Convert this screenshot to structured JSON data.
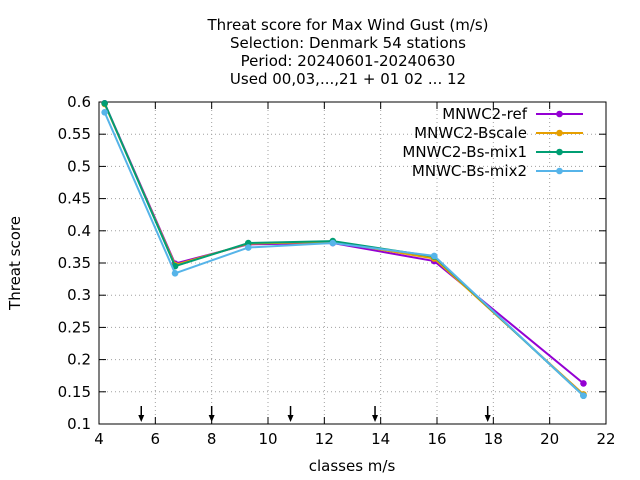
{
  "chart_data": {
    "type": "line",
    "title_lines": [
      "Threat score  for Max Wind Gust (m/s)",
      "Selection: Denmark     54 stations",
      "Period: 20240601-20240630",
      "Used 00,03,...,21 + 01 02 ... 12"
    ],
    "xlabel": "classes m/s",
    "ylabel": "Threat score",
    "xlim": [
      4,
      22
    ],
    "ylim": [
      0.1,
      0.6
    ],
    "xticks": [
      4,
      6,
      8,
      10,
      12,
      14,
      16,
      18,
      20,
      22
    ],
    "yticks": [
      0.1,
      0.15,
      0.2,
      0.25,
      0.3,
      0.35,
      0.4,
      0.45,
      0.5,
      0.55,
      0.6
    ],
    "ytick_labels": [
      "0.1",
      "0.15",
      "0.2",
      "0.25",
      "0.3",
      "0.35",
      "0.4",
      "0.45",
      "0.5",
      "0.55",
      "0.6"
    ],
    "grid": true,
    "legend_position": "top-right",
    "threshold_arrows_x": [
      5.5,
      8.0,
      10.8,
      13.8,
      17.8
    ],
    "x": [
      4.2,
      6.7,
      9.3,
      12.3,
      15.9,
      21.2
    ],
    "series": [
      {
        "name": "MNWC2-ref",
        "color": "#9400d3",
        "values": [
          0.598,
          0.349,
          0.379,
          0.381,
          0.353,
          0.163
        ]
      },
      {
        "name": "MNWC2-Bscale",
        "color": "#e69f00",
        "values": [
          0.597,
          0.347,
          0.38,
          0.383,
          0.357,
          0.146
        ]
      },
      {
        "name": "MNWC2-Bs-mix1",
        "color": "#009e73",
        "values": [
          0.598,
          0.345,
          0.381,
          0.384,
          0.36,
          0.144
        ]
      },
      {
        "name": "MNWC-Bs-mix2",
        "color": "#56b4e9",
        "values": [
          0.584,
          0.334,
          0.374,
          0.381,
          0.361,
          0.144
        ]
      }
    ]
  }
}
